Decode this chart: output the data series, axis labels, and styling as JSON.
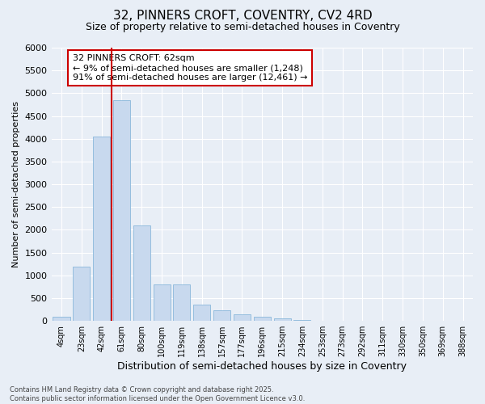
{
  "title": "32, PINNERS CROFT, COVENTRY, CV2 4RD",
  "subtitle": "Size of property relative to semi-detached houses in Coventry",
  "xlabel": "Distribution of semi-detached houses by size in Coventry",
  "ylabel": "Number of semi-detached properties",
  "categories": [
    "4sqm",
    "23sqm",
    "42sqm",
    "61sqm",
    "80sqm",
    "100sqm",
    "119sqm",
    "138sqm",
    "157sqm",
    "177sqm",
    "196sqm",
    "215sqm",
    "234sqm",
    "253sqm",
    "273sqm",
    "292sqm",
    "311sqm",
    "330sqm",
    "350sqm",
    "369sqm",
    "388sqm"
  ],
  "values": [
    100,
    1200,
    4050,
    4850,
    2100,
    800,
    800,
    350,
    230,
    150,
    100,
    50,
    30,
    10,
    5,
    3,
    1,
    1,
    0,
    0,
    0
  ],
  "bar_color": "#c8d9ee",
  "bar_edge_color": "#7aaed6",
  "vline_x": 2.5,
  "vline_color": "#cc0000",
  "annotation_title": "32 PINNERS CROFT: 62sqm",
  "annotation_line1": "← 9% of semi-detached houses are smaller (1,248)",
  "annotation_line2": "91% of semi-detached houses are larger (12,461) →",
  "footer1": "Contains HM Land Registry data © Crown copyright and database right 2025.",
  "footer2": "Contains public sector information licensed under the Open Government Licence v3.0.",
  "ylim": [
    0,
    6000
  ],
  "yticks": [
    0,
    500,
    1000,
    1500,
    2000,
    2500,
    3000,
    3500,
    4000,
    4500,
    5000,
    5500,
    6000
  ],
  "bg_color": "#e8eef6",
  "grid_color": "#ffffff",
  "title_fontsize": 11,
  "subtitle_fontsize": 9,
  "footer_fontsize": 6,
  "annotation_box_edge": "#cc0000",
  "annotation_fontsize": 8,
  "ylabel_fontsize": 8,
  "xlabel_fontsize": 9,
  "tick_fontsize": 8,
  "xtick_fontsize": 7
}
